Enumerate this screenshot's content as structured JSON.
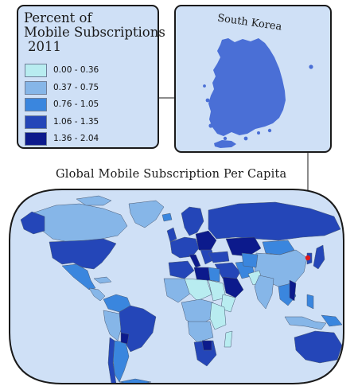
{
  "legend": {
    "title_lines": [
      "Percent of",
      "Mobile Subscriptions",
      "2011"
    ],
    "classes": [
      {
        "label": "0.00 - 0.36",
        "color": "#b8ecf0"
      },
      {
        "label": "0.37 - 0.75",
        "color": "#86b6e8"
      },
      {
        "label": "0.76 - 1.05",
        "color": "#3a86de"
      },
      {
        "label": "1.06 - 1.35",
        "color": "#2446b8"
      },
      {
        "label": "1.36 - 2.04",
        "color": "#0c1a8c"
      }
    ]
  },
  "inset": {
    "label": "South Korea",
    "fill_color": "#4a6fd6",
    "marker_color": "#e01818"
  },
  "map": {
    "title": "Global Mobile Subscription Per Capita",
    "ocean_color": "#cfe0f6",
    "frame_color": "#1a1a1a"
  }
}
